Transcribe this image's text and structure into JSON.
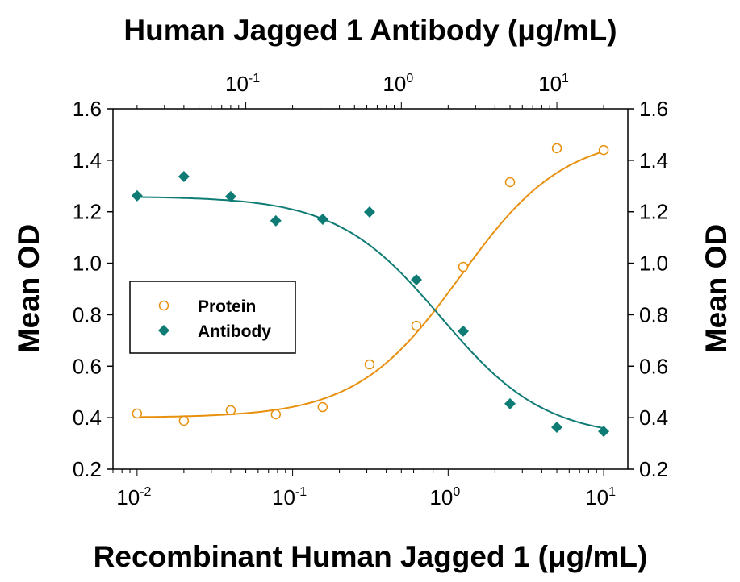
{
  "chart_data": {
    "type": "scatter",
    "top_title": "Human Jagged 1 Antibody (μg/mL)",
    "xlabel": "Recombinant Human Jagged 1 (μg/mL)",
    "ylabel_left": "Mean OD",
    "ylabel_right": "Mean OD",
    "x_scale": "log",
    "xlim": [
      0.007,
      14.3
    ],
    "x_ticks": [
      "10^-2",
      "10^-1",
      "10^0",
      "10^1"
    ],
    "top_x_scale": "log",
    "top_xlim": [
      0.014,
      28.6
    ],
    "top_x_ticks": [
      "10^-1",
      "10^0",
      "10^1"
    ],
    "ylim": [
      0.2,
      1.6
    ],
    "y_ticks": [
      "0.2",
      "0.4",
      "0.6",
      "0.8",
      "1.0",
      "1.2",
      "1.4",
      "1.6"
    ],
    "grid": false,
    "legend_position": "middle-left",
    "series": [
      {
        "name": "Protein",
        "axis": "bottom",
        "marker": "open-circle",
        "color": "#E8900C",
        "x": [
          0.01,
          0.02,
          0.04,
          0.078,
          0.156,
          0.3125,
          0.625,
          1.25,
          2.5,
          5,
          10
        ],
        "y": [
          0.416,
          0.388,
          0.429,
          0.413,
          0.441,
          0.607,
          0.757,
          0.986,
          1.315,
          1.447,
          1.44
        ],
        "fit": {
          "model": "4PL",
          "bottom": 0.4,
          "top": 1.5,
          "ec50": 1.2,
          "hill": 1.3,
          "range": [
            0.01,
            10
          ]
        }
      },
      {
        "name": "Antibody",
        "axis": "top",
        "marker": "filled-diamond",
        "color": "#0E7C74",
        "x": [
          0.02,
          0.04,
          0.08,
          0.156,
          0.3125,
          0.625,
          1.25,
          2.5,
          5,
          10,
          20
        ],
        "y": [
          1.262,
          1.337,
          1.259,
          1.165,
          1.171,
          1.199,
          0.936,
          0.736,
          0.454,
          0.363,
          0.347
        ],
        "fit": {
          "model": "4PL",
          "bottom": 0.32,
          "top": 1.26,
          "ec50": 1.8,
          "hill": -1.3,
          "range": [
            0.02,
            20
          ]
        }
      }
    ]
  }
}
